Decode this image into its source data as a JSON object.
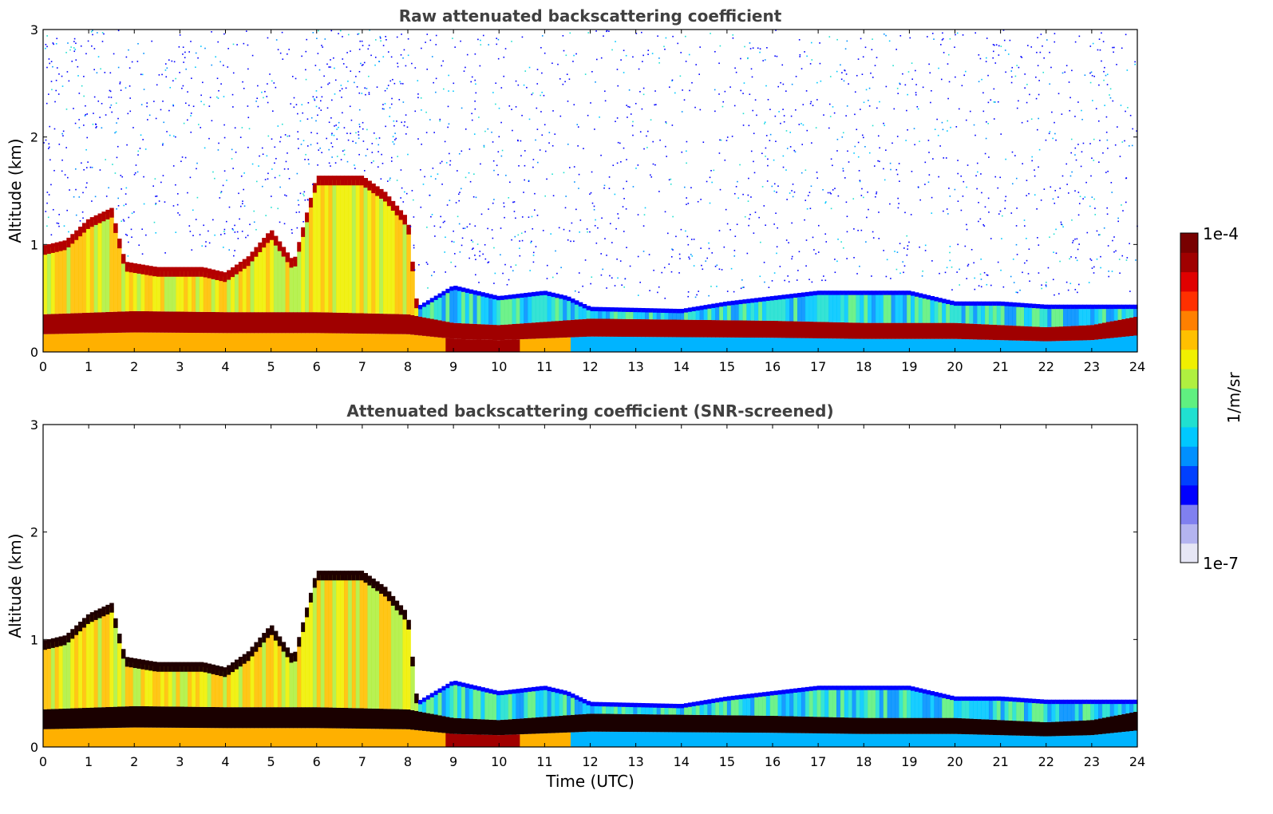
{
  "chart_data": [
    {
      "type": "heatmap",
      "title": "Raw attenuated backscattering coefficient",
      "xlabel": "",
      "ylabel": "Altitude (km)",
      "xlim": [
        0,
        24
      ],
      "ylim": [
        0,
        3
      ],
      "xticks": [
        "0",
        "1",
        "2",
        "3",
        "4",
        "5",
        "6",
        "7",
        "8",
        "9",
        "10",
        "11",
        "12",
        "13",
        "14",
        "15",
        "16",
        "17",
        "18",
        "19",
        "20",
        "21",
        "22",
        "23",
        "24"
      ],
      "yticks": [
        "0",
        "1",
        "2",
        "3"
      ],
      "features": {
        "boundary_layer_top_km": [
          [
            0,
            0.3
          ],
          [
            2,
            0.33
          ],
          [
            4,
            0.32
          ],
          [
            6,
            0.32
          ],
          [
            8,
            0.3
          ],
          [
            9,
            0.22
          ],
          [
            10,
            0.2
          ],
          [
            12,
            0.26
          ],
          [
            14,
            0.25
          ],
          [
            16,
            0.24
          ],
          [
            18,
            0.22
          ],
          [
            20,
            0.22
          ],
          [
            22,
            0.18
          ],
          [
            23,
            0.2
          ],
          [
            24,
            0.28
          ]
        ],
        "residual_layer_top_km": [
          [
            0,
            0.95
          ],
          [
            0.5,
            1.0
          ],
          [
            1,
            1.2
          ],
          [
            1.5,
            1.3
          ],
          [
            1.8,
            0.8
          ],
          [
            2.5,
            0.75
          ],
          [
            3.5,
            0.75
          ],
          [
            4,
            0.7
          ],
          [
            4.5,
            0.85
          ],
          [
            5,
            1.1
          ],
          [
            5.5,
            0.8
          ],
          [
            6,
            1.6
          ],
          [
            7,
            1.6
          ],
          [
            7.5,
            1.45
          ],
          [
            8,
            1.2
          ],
          [
            8.2,
            0.4
          ],
          [
            9,
            0.6
          ],
          [
            10,
            0.5
          ],
          [
            11,
            0.55
          ],
          [
            11.5,
            0.5
          ],
          [
            12,
            0.4
          ],
          [
            14,
            0.38
          ],
          [
            15,
            0.45
          ],
          [
            16,
            0.5
          ],
          [
            17,
            0.55
          ],
          [
            18,
            0.55
          ],
          [
            19,
            0.55
          ],
          [
            20,
            0.45
          ],
          [
            21,
            0.45
          ],
          [
            22,
            0.42
          ],
          [
            24,
            0.42
          ]
        ]
      }
    },
    {
      "type": "heatmap",
      "title": "Attenuated backscattering coefficient (SNR-screened)",
      "xlabel": "Time (UTC)",
      "ylabel": "Altitude (km)",
      "xlim": [
        0,
        24
      ],
      "ylim": [
        0,
        3
      ],
      "xticks": [
        "0",
        "1",
        "2",
        "3",
        "4",
        "5",
        "6",
        "7",
        "8",
        "9",
        "10",
        "11",
        "12",
        "13",
        "14",
        "15",
        "16",
        "17",
        "18",
        "19",
        "20",
        "21",
        "22",
        "23",
        "24"
      ],
      "yticks": [
        "0",
        "1",
        "2",
        "3"
      ]
    }
  ],
  "colorbar": {
    "label": "1/m/sr",
    "max_label": "1e-4",
    "min_label": "1e-7",
    "colors": [
      "#e6e6f5",
      "#b4b4f0",
      "#8080f0",
      "#0000ff",
      "#0040ff",
      "#0090ff",
      "#00c8ff",
      "#20e0d0",
      "#60f080",
      "#b0f040",
      "#f0f000",
      "#ffc000",
      "#ff8000",
      "#ff3000",
      "#e00000",
      "#a00000",
      "#780000"
    ]
  }
}
